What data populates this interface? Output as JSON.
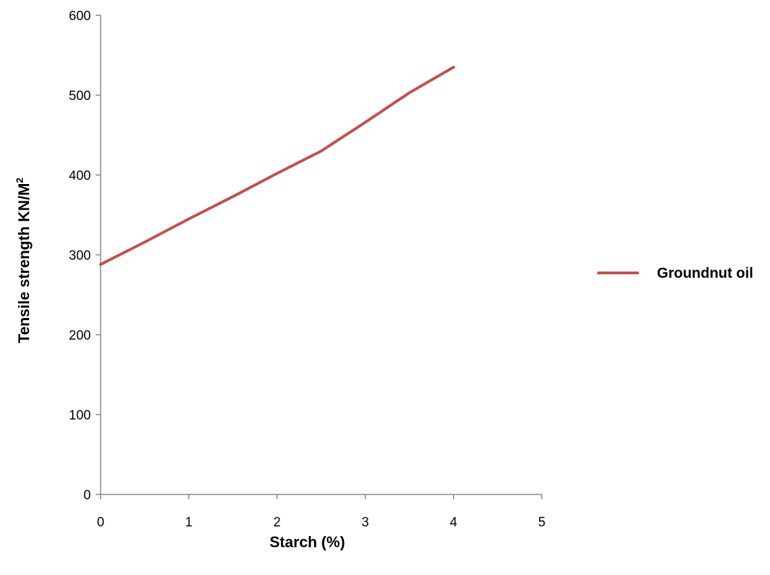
{
  "chart_data": {
    "type": "line",
    "title": "",
    "xlabel": "Starch (%)",
    "ylabel": "Tensile strength KN/M",
    "ylabel_superscript": "2",
    "xlim": [
      0,
      5
    ],
    "ylim": [
      0,
      600
    ],
    "x_ticks": [
      "0",
      "1",
      "2",
      "3",
      "4",
      "5"
    ],
    "y_ticks": [
      "0",
      "100",
      "200",
      "300",
      "400",
      "500",
      "600"
    ],
    "grid": false,
    "legend_position": "right",
    "series": [
      {
        "name": "Groundnut oil",
        "color": "#c0504d",
        "x": [
          0,
          0.5,
          1,
          1.5,
          2,
          2.5,
          3,
          3.5,
          4
        ],
        "y": [
          288,
          316,
          345,
          373,
          402,
          430,
          466,
          503,
          535
        ]
      }
    ]
  }
}
